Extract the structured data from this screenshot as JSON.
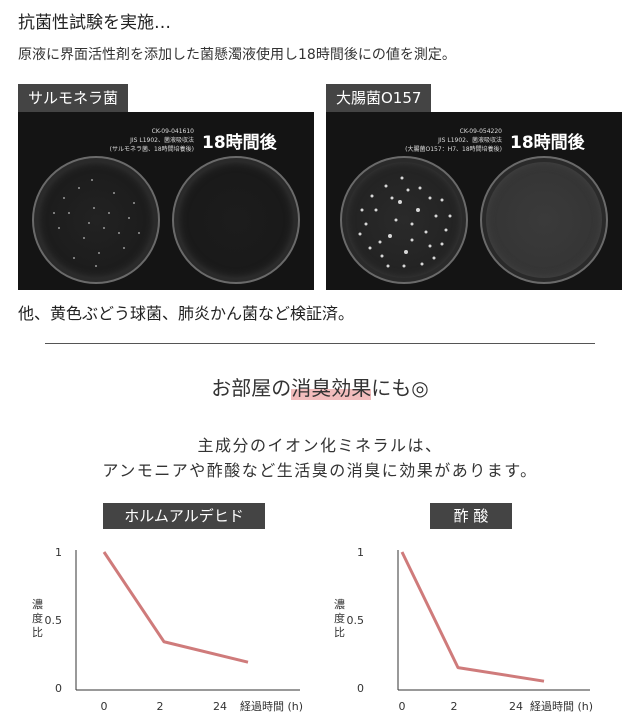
{
  "heading": "抗菌性試験を実施…",
  "description": "原液に界面活性剤を添加した菌懸濁液使用し18時間後にの値を測定。",
  "photos": [
    {
      "label": "サルモネラ菌",
      "code": "CK-09-041610",
      "method": "JIS L1902、菌液吸収法",
      "note": "(サルモネラ菌、18時間培養後)",
      "time": "18時間後"
    },
    {
      "label": "大腸菌O157",
      "code": "CK-09-054220",
      "method": "JIS L1902、菌液吸収法",
      "note": "(大腸菌O157：H7、18時間培養後)",
      "time": "18時間後"
    }
  ],
  "others_text": "他、黄色ぶどう球菌、肺炎かん菌など検証済。",
  "section_title_pre": "お部屋の",
  "section_title_hl": "消臭効果",
  "section_title_post": "にも◎",
  "lead_line1": "主成分のイオン化ミネラルは、",
  "lead_line2": "アンモニアや酢酸など生活臭の消臭に効果があります。",
  "colors": {
    "line": "#cf7b7b",
    "label_bg": "#444444",
    "highlight": "#f2bcbc"
  },
  "chart_data": [
    {
      "type": "line",
      "title": "ホルムアルデヒド",
      "ylabel": "濃度比",
      "xlabel": "経過時間 (h)",
      "x_ticks": [
        "0",
        "2",
        "24"
      ],
      "y_ticks": [
        "1",
        "0.5",
        "0"
      ],
      "ylim": [
        0,
        1
      ],
      "x": [
        "0",
        "2",
        "24"
      ],
      "values": [
        1.0,
        0.34,
        0.19
      ]
    },
    {
      "type": "line",
      "title": "酢 酸",
      "ylabel": "濃度比",
      "xlabel": "経過時間 (h)",
      "x_ticks": [
        "0",
        "2",
        "24"
      ],
      "y_ticks": [
        "1",
        "0.5",
        "0"
      ],
      "ylim": [
        0,
        1
      ],
      "x": [
        "0",
        "2",
        "24"
      ],
      "values": [
        1.0,
        0.15,
        0.05
      ]
    }
  ]
}
